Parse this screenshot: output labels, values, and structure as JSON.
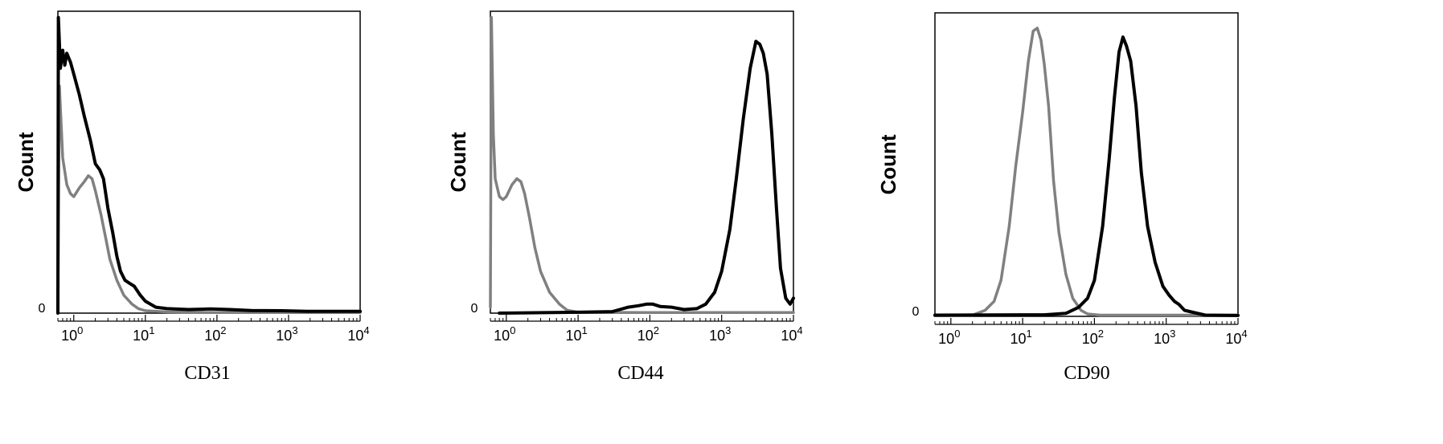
{
  "chart_data": [
    {
      "type": "line",
      "xlabel": "CD31",
      "ylabel": "Count",
      "x_scale": "log",
      "xlim": [
        0.6,
        10000
      ],
      "ylim_label": "0",
      "x_ticks": [
        1,
        10,
        100,
        1000,
        10000
      ],
      "x_tick_labels": [
        {
          "base": "10",
          "exp": "0"
        },
        {
          "base": "10",
          "exp": "1"
        },
        {
          "base": "10",
          "exp": "2"
        },
        {
          "base": "10",
          "exp": "3"
        },
        {
          "base": "10",
          "exp": "4"
        }
      ],
      "series": [
        {
          "color": "#808080",
          "points": [
            [
              0.6,
              0.04
            ],
            [
              0.63,
              0.76
            ],
            [
              0.7,
              0.52
            ],
            [
              0.8,
              0.43
            ],
            [
              0.9,
              0.4
            ],
            [
              1.0,
              0.39
            ],
            [
              1.2,
              0.42
            ],
            [
              1.4,
              0.44
            ],
            [
              1.6,
              0.46
            ],
            [
              1.8,
              0.45
            ],
            [
              2.0,
              0.41
            ],
            [
              2.4,
              0.33
            ],
            [
              2.8,
              0.25
            ],
            [
              3.2,
              0.18
            ],
            [
              4.0,
              0.11
            ],
            [
              5.0,
              0.06
            ],
            [
              6.5,
              0.03
            ],
            [
              8.0,
              0.015
            ],
            [
              10,
              0.008
            ],
            [
              20,
              0.004
            ],
            [
              100,
              0.002
            ],
            [
              10000,
              0.002
            ]
          ]
        },
        {
          "color": "#000000",
          "points": [
            [
              0.6,
              0.0
            ],
            [
              0.61,
              0.99
            ],
            [
              0.65,
              0.82
            ],
            [
              0.7,
              0.88
            ],
            [
              0.75,
              0.83
            ],
            [
              0.8,
              0.87
            ],
            [
              0.9,
              0.84
            ],
            [
              1.0,
              0.8
            ],
            [
              1.2,
              0.73
            ],
            [
              1.4,
              0.66
            ],
            [
              1.7,
              0.58
            ],
            [
              2.0,
              0.5
            ],
            [
              2.3,
              0.48
            ],
            [
              2.6,
              0.45
            ],
            [
              3.0,
              0.35
            ],
            [
              3.5,
              0.27
            ],
            [
              4.0,
              0.19
            ],
            [
              4.5,
              0.14
            ],
            [
              5.2,
              0.11
            ],
            [
              6.0,
              0.1
            ],
            [
              7.0,
              0.09
            ],
            [
              8.5,
              0.06
            ],
            [
              10,
              0.04
            ],
            [
              14,
              0.02
            ],
            [
              20,
              0.015
            ],
            [
              40,
              0.012
            ],
            [
              80,
              0.014
            ],
            [
              150,
              0.012
            ],
            [
              300,
              0.009
            ],
            [
              800,
              0.008
            ],
            [
              2000,
              0.006
            ],
            [
              10000,
              0.006
            ]
          ]
        }
      ]
    },
    {
      "type": "line",
      "xlabel": "CD44",
      "ylabel": "Count",
      "x_scale": "log",
      "xlim": [
        0.6,
        10000
      ],
      "ylim_label": "0",
      "x_ticks": [
        1,
        10,
        100,
        1000,
        10000
      ],
      "x_tick_labels": [
        {
          "base": "10",
          "exp": "0"
        },
        {
          "base": "10",
          "exp": "1"
        },
        {
          "base": "10",
          "exp": "2"
        },
        {
          "base": "10",
          "exp": "3"
        },
        {
          "base": "10",
          "exp": "4"
        }
      ],
      "series": [
        {
          "color": "#808080",
          "points": [
            [
              0.6,
              0.02
            ],
            [
              0.62,
              0.99
            ],
            [
              0.66,
              0.6
            ],
            [
              0.7,
              0.45
            ],
            [
              0.8,
              0.39
            ],
            [
              0.9,
              0.38
            ],
            [
              1.0,
              0.39
            ],
            [
              1.2,
              0.43
            ],
            [
              1.4,
              0.45
            ],
            [
              1.6,
              0.44
            ],
            [
              1.8,
              0.4
            ],
            [
              2.1,
              0.32
            ],
            [
              2.5,
              0.22
            ],
            [
              3.0,
              0.14
            ],
            [
              4.0,
              0.07
            ],
            [
              5.5,
              0.03
            ],
            [
              7.0,
              0.01
            ],
            [
              10,
              0.003
            ],
            [
              100,
              0.002
            ],
            [
              10000,
              0.002
            ]
          ]
        },
        {
          "color": "#000000",
          "points": [
            [
              0.8,
              0.0
            ],
            [
              10,
              0.003
            ],
            [
              30,
              0.005
            ],
            [
              50,
              0.02
            ],
            [
              70,
              0.025
            ],
            [
              90,
              0.03
            ],
            [
              110,
              0.03
            ],
            [
              140,
              0.022
            ],
            [
              200,
              0.02
            ],
            [
              300,
              0.012
            ],
            [
              450,
              0.015
            ],
            [
              600,
              0.03
            ],
            [
              800,
              0.07
            ],
            [
              1000,
              0.14
            ],
            [
              1300,
              0.28
            ],
            [
              1600,
              0.45
            ],
            [
              2000,
              0.65
            ],
            [
              2500,
              0.82
            ],
            [
              3000,
              0.91
            ],
            [
              3400,
              0.9
            ],
            [
              3800,
              0.87
            ],
            [
              4300,
              0.8
            ],
            [
              5000,
              0.6
            ],
            [
              5800,
              0.35
            ],
            [
              6600,
              0.15
            ],
            [
              7800,
              0.05
            ],
            [
              9000,
              0.03
            ],
            [
              10000,
              0.05
            ]
          ]
        }
      ]
    },
    {
      "type": "line",
      "xlabel": "CD90",
      "ylabel": "Count",
      "x_scale": "log",
      "xlim": [
        0.6,
        10000
      ],
      "ylim_label": "0",
      "x_ticks": [
        1,
        10,
        100,
        1000,
        10000
      ],
      "x_tick_labels": [
        {
          "base": "10",
          "exp": "0"
        },
        {
          "base": "10",
          "exp": "1"
        },
        {
          "base": "10",
          "exp": "2"
        },
        {
          "base": "10",
          "exp": "3"
        },
        {
          "base": "10",
          "exp": "4"
        }
      ],
      "series": [
        {
          "color": "#808080",
          "points": [
            [
              0.6,
              0.002
            ],
            [
              2.0,
              0.004
            ],
            [
              3.0,
              0.02
            ],
            [
              4.0,
              0.05
            ],
            [
              5.0,
              0.12
            ],
            [
              6.5,
              0.3
            ],
            [
              8.0,
              0.5
            ],
            [
              10,
              0.68
            ],
            [
              12,
              0.85
            ],
            [
              14,
              0.95
            ],
            [
              16,
              0.96
            ],
            [
              18,
              0.92
            ],
            [
              20,
              0.84
            ],
            [
              23,
              0.7
            ],
            [
              27,
              0.45
            ],
            [
              32,
              0.28
            ],
            [
              40,
              0.14
            ],
            [
              50,
              0.06
            ],
            [
              65,
              0.02
            ],
            [
              80,
              0.008
            ],
            [
              120,
              0.004
            ],
            [
              10000,
              0.004
            ]
          ]
        },
        {
          "color": "#000000",
          "points": [
            [
              0.6,
              0.004
            ],
            [
              20,
              0.005
            ],
            [
              40,
              0.01
            ],
            [
              60,
              0.03
            ],
            [
              80,
              0.06
            ],
            [
              100,
              0.12
            ],
            [
              130,
              0.3
            ],
            [
              160,
              0.52
            ],
            [
              190,
              0.73
            ],
            [
              220,
              0.88
            ],
            [
              250,
              0.93
            ],
            [
              280,
              0.9
            ],
            [
              320,
              0.85
            ],
            [
              380,
              0.7
            ],
            [
              450,
              0.48
            ],
            [
              550,
              0.3
            ],
            [
              700,
              0.18
            ],
            [
              900,
              0.1
            ],
            [
              1100,
              0.07
            ],
            [
              1300,
              0.05
            ],
            [
              1500,
              0.04
            ],
            [
              1800,
              0.02
            ],
            [
              2500,
              0.012
            ],
            [
              3500,
              0.004
            ],
            [
              10000,
              0.003
            ]
          ]
        }
      ]
    }
  ]
}
